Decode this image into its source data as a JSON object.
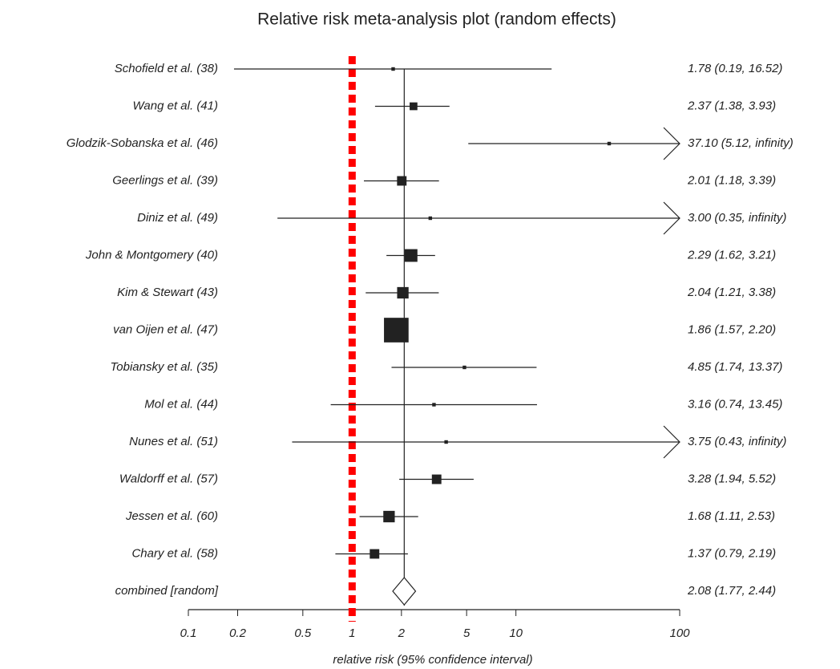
{
  "chart_data": {
    "type": "forest",
    "title": "Relative risk meta-analysis plot (random effects)",
    "x_label": "relative risk (95% confidence interval)",
    "log_x": true,
    "xlim": [
      0.1,
      100
    ],
    "xticks": [
      0.1,
      0.2,
      0.5,
      1,
      2,
      5,
      10,
      100
    ],
    "reference_line": 1,
    "reference_color": "#ff0000",
    "color": "#222222",
    "categories": [
      "Schofield et al. (38)",
      "Wang et al. (41)",
      "Glodzik-Sobanska et al. (46)",
      "Geerlings et al. (39)",
      "Diniz et al. (49)",
      "John & Montgomery (40)",
      "Kim & Stewart (43)",
      "van Oijen et al. (47)",
      "Tobiansky et al. (35)",
      "Mol et al. (44)",
      "Nunes et al. (51)",
      "Waldorff et al. (57)",
      "Jessen et al. (60)",
      "Chary et al. (58)"
    ],
    "estimates": [
      1.78,
      2.37,
      37.1,
      2.01,
      3.0,
      2.29,
      2.04,
      1.86,
      4.85,
      3.16,
      3.75,
      3.28,
      1.68,
      1.37
    ],
    "lowers": [
      0.19,
      1.38,
      5.12,
      1.18,
      0.35,
      1.62,
      1.21,
      1.57,
      1.74,
      0.74,
      0.43,
      1.94,
      1.11,
      0.79
    ],
    "uppers": [
      16.52,
      3.93,
      null,
      3.39,
      null,
      3.21,
      3.38,
      2.2,
      13.37,
      13.45,
      null,
      5.52,
      2.53,
      2.19
    ],
    "weights": [
      0.5,
      3,
      0.5,
      4.5,
      0.5,
      8,
      6.5,
      30,
      0.5,
      0.5,
      0.5,
      4.5,
      6.5,
      4.5
    ],
    "value_labels": [
      "1.78 (0.19, 16.52)",
      "2.37 (1.38, 3.93)",
      "37.10 (5.12, infinity)",
      "2.01 (1.18, 3.39)",
      "3.00 (0.35, infinity)",
      "2.29 (1.62, 3.21)",
      "2.04 (1.21, 3.38)",
      "1.86 (1.57, 2.20)",
      "4.85 (1.74, 13.37)",
      "3.16 (0.74, 13.45)",
      "3.75 (0.43, infinity)",
      "3.28 (1.94, 5.52)",
      "1.68 (1.11, 2.53)",
      "1.37 (0.79, 2.19)"
    ],
    "combined": {
      "name": "combined [random]",
      "estimate": 2.08,
      "lower": 1.77,
      "upper": 2.44,
      "value_label": "2.08 (1.77, 2.44)"
    }
  }
}
